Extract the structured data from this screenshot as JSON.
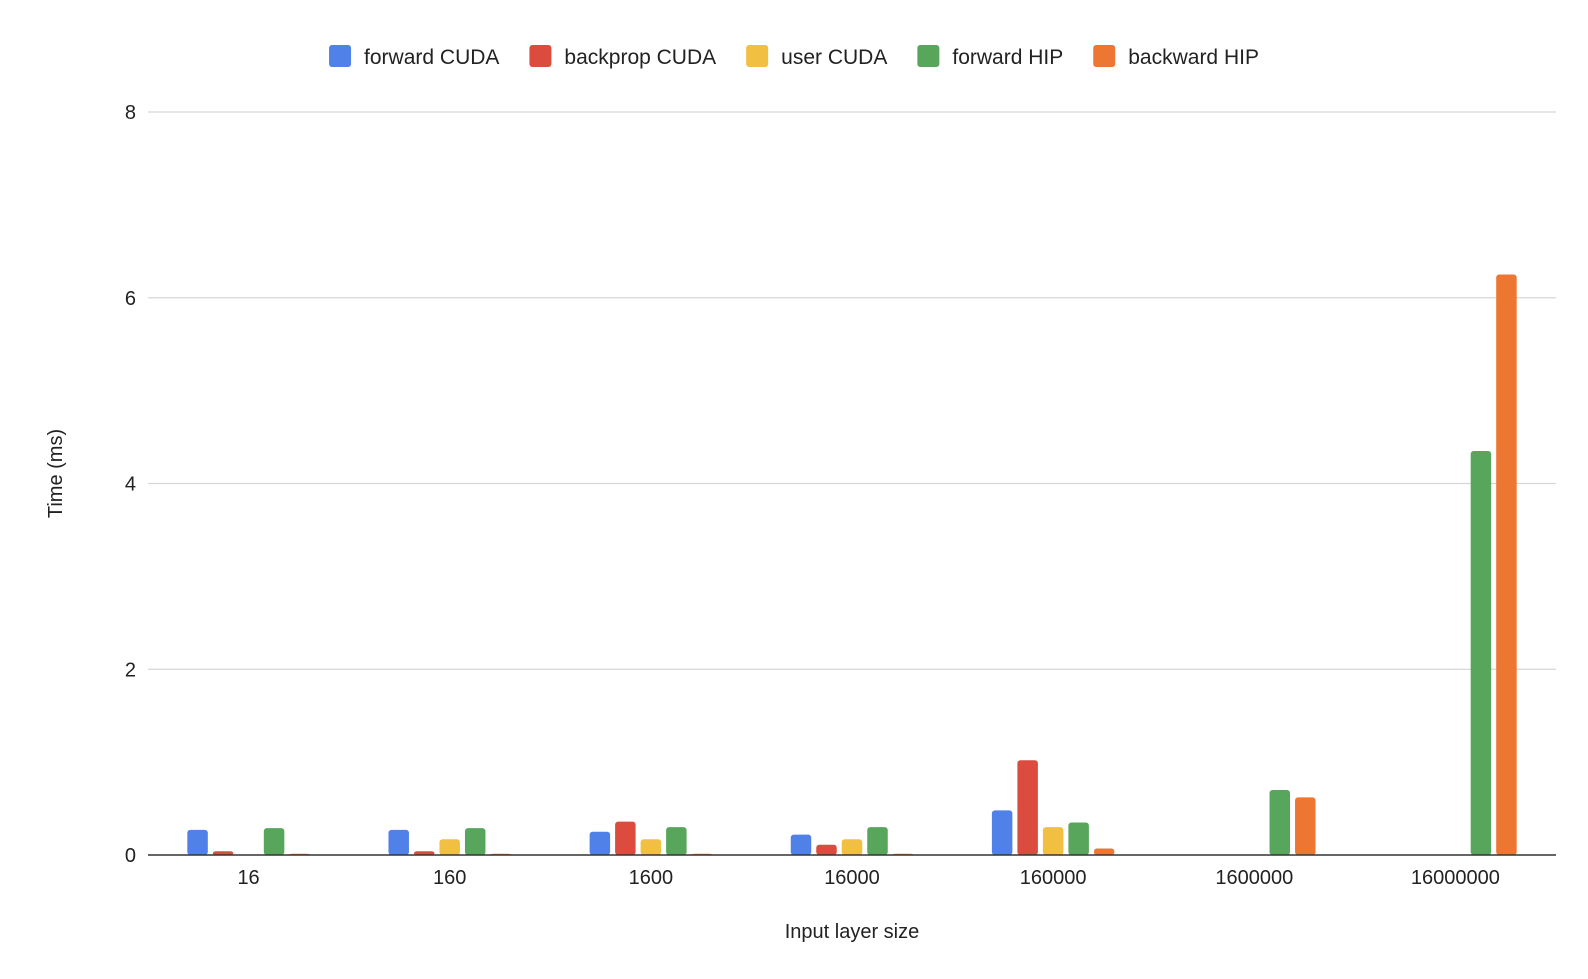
{
  "chart_data": {
    "type": "bar",
    "title": "",
    "xlabel": "Input layer size",
    "ylabel": "Time (ms)",
    "ylim": [
      0,
      8
    ],
    "yticks": [
      0,
      2,
      4,
      6,
      8
    ],
    "grid": true,
    "legend_position": "top",
    "categories": [
      "16",
      "160",
      "1600",
      "16000",
      "160000",
      "1600000",
      "16000000"
    ],
    "series": [
      {
        "name": "forward CUDA",
        "color": "#4F81E8",
        "values": [
          0.27,
          0.27,
          0.25,
          0.22,
          0.48,
          null,
          null
        ]
      },
      {
        "name": "backprop CUDA",
        "color": "#DB4B3E",
        "values": [
          0.04,
          0.04,
          0.36,
          0.11,
          1.02,
          null,
          null
        ]
      },
      {
        "name": "user CUDA",
        "color": "#F1BF42",
        "values": [
          null,
          0.17,
          0.17,
          0.17,
          0.3,
          null,
          null
        ]
      },
      {
        "name": "forward HIP",
        "color": "#58A55C",
        "values": [
          0.29,
          0.29,
          0.3,
          0.3,
          0.35,
          0.7,
          4.35
        ]
      },
      {
        "name": "backward HIP",
        "color": "#ED7732",
        "values": [
          0.01,
          0.01,
          0.01,
          0.01,
          0.07,
          0.62,
          6.25
        ]
      }
    ]
  }
}
